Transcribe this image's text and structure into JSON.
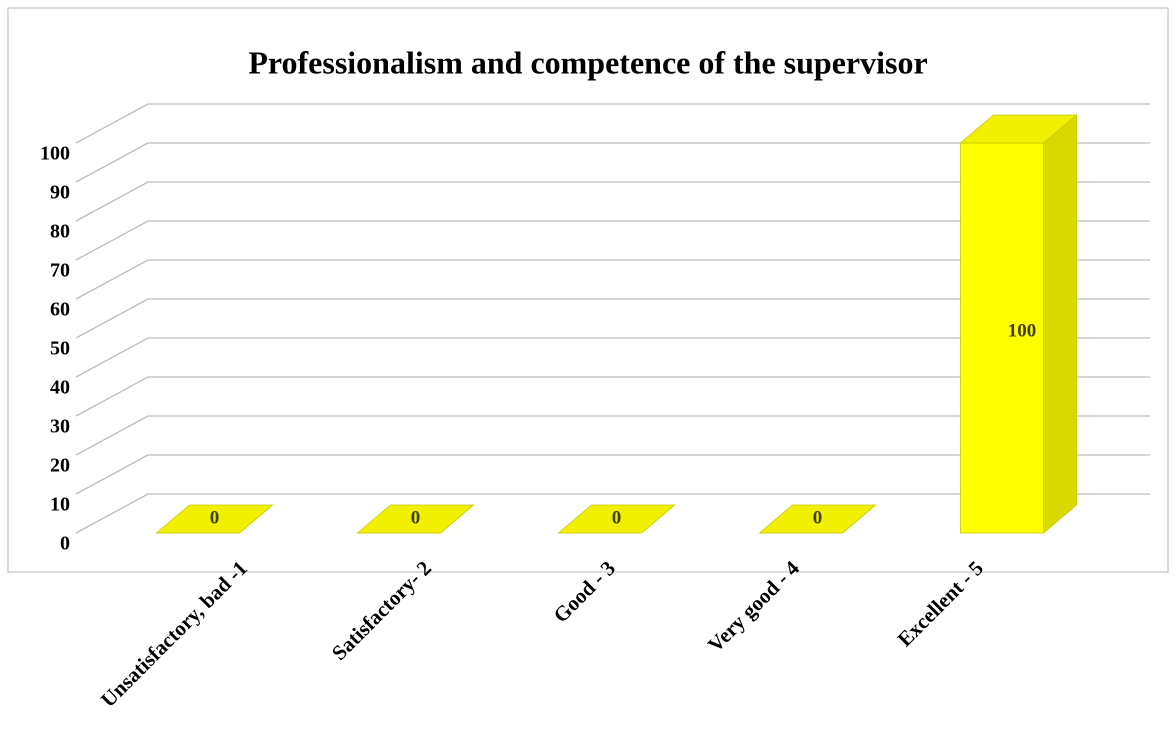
{
  "chart_data": {
    "type": "bar3d",
    "title": "Professionalism and competence of the supervisor",
    "categories": [
      "Unsatisfactory, bad -1",
      "Satisfactory- 2",
      "Good - 3",
      "Very good - 4",
      "Excellent - 5"
    ],
    "values": [
      0,
      0,
      0,
      0,
      100
    ],
    "color": "#ffff00",
    "ylim": [
      0,
      100
    ],
    "yticks": [
      0,
      10,
      20,
      30,
      40,
      50,
      60,
      70,
      80,
      90,
      100
    ],
    "grid": true
  }
}
